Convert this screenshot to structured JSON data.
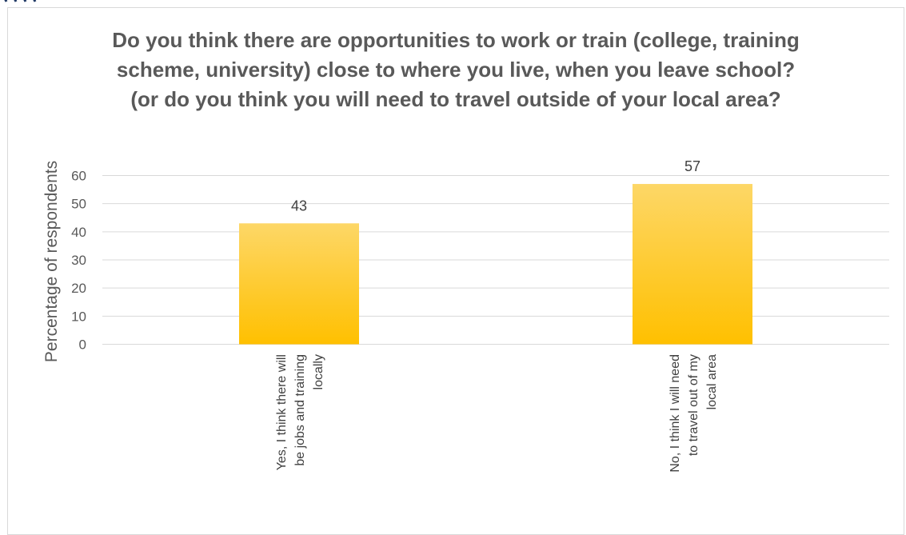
{
  "colors": {
    "bar_top": "#fdd767",
    "bar_bottom": "#ffc000",
    "grid": "#d9d9d9",
    "text": "#595959"
  },
  "chart_data": {
    "type": "bar",
    "title": "Do you think there are opportunities to work or train (college, training scheme, university) close to where you live, when you leave school? (or do you think you will need to travel outside of your local area?",
    "xlabel": "",
    "ylabel": "Percentage of respondents",
    "ylim": [
      0,
      60
    ],
    "yticks": [
      0,
      10,
      20,
      30,
      40,
      50,
      60
    ],
    "grid": true,
    "categories": [
      [
        "Yes, I think there will",
        "be jobs and training",
        "locally"
      ],
      [
        "No, I think I will need",
        "to travel out of my",
        "local area"
      ]
    ],
    "values": [
      43,
      57
    ],
    "data_labels": [
      "43",
      "57"
    ]
  }
}
